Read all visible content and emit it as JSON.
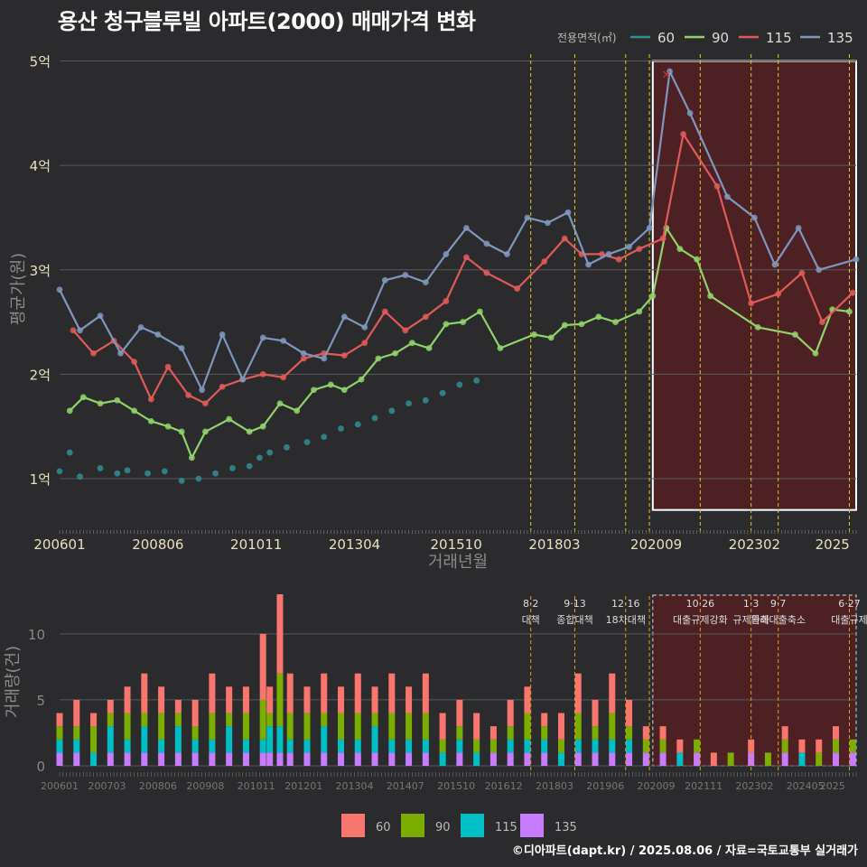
{
  "title": "용산 청구블루빌 아파트(2000) 매매가격 변화",
  "credit": "©디아파트(dapt.kr) / 2025.08.06 / 자료=국토교통부 실거래가",
  "colors": {
    "s60_price": "#2f8f95",
    "s90_price": "#8fd46a",
    "s115_price": "#e05a5a",
    "s135_price": "#7f96bd",
    "s60_vol": "#f8766d",
    "s90_vol": "#7cae00",
    "s115_vol": "#00bfc4",
    "s135_vol": "#c77cff",
    "policy_line": "#e8c81c",
    "highlight_fill": "#5a1f22",
    "grid": "#5a5a5c",
    "axis_text": "#e8e0c0"
  },
  "chart_data": [
    {
      "type": "line",
      "title": "용산 청구블루빌 아파트(2000) 매매가격 변화",
      "xlabel": "거래년월",
      "ylabel": "평균가(원)",
      "x_range": [
        200601,
        202508
      ],
      "ylim": [
        0.55,
        5.1
      ],
      "y_ticks": [
        1,
        2,
        3,
        4,
        5
      ],
      "y_tick_labels": [
        "1억",
        "2억",
        "3억",
        "4억",
        "5억"
      ],
      "x_ticks": [
        "200601",
        "200806",
        "201011",
        "201304",
        "201510",
        "201803",
        "202009",
        "202302",
        "2025"
      ],
      "legend_title": "전용면적(㎡)",
      "legend_position": "top-right",
      "highlight_period": {
        "from": "2020-08",
        "to": "2025-08",
        "y_from": 0.7,
        "y_to": 5.0
      },
      "marker": {
        "label": "×",
        "x": "2020-12",
        "y": 4.88
      },
      "series": [
        {
          "name": "60",
          "points": [
            [
              "2006-01",
              1.07
            ],
            [
              "2006-04",
              1.25
            ],
            [
              "2006-07",
              1.02
            ],
            [
              "2007-01",
              1.1
            ],
            [
              "2007-06",
              1.05
            ],
            [
              "2007-09",
              1.08
            ],
            [
              "2008-03",
              1.05
            ],
            [
              "2008-08",
              1.07
            ],
            [
              "2009-01",
              0.98
            ],
            [
              "2009-06",
              1.0
            ],
            [
              "2009-11",
              1.05
            ],
            [
              "2010-04",
              1.1
            ],
            [
              "2010-09",
              1.12
            ],
            [
              "2010-12",
              1.2
            ],
            [
              "2011-03",
              1.25
            ],
            [
              "2011-08",
              1.3
            ],
            [
              "2012-02",
              1.35
            ],
            [
              "2012-07",
              1.4
            ],
            [
              "2012-12",
              1.48
            ],
            [
              "2013-05",
              1.52
            ],
            [
              "2013-10",
              1.58
            ],
            [
              "2014-03",
              1.65
            ],
            [
              "2014-08",
              1.72
            ],
            [
              "2015-01",
              1.75
            ],
            [
              "2015-06",
              1.82
            ],
            [
              "2015-11",
              1.9
            ],
            [
              "2016-04",
              1.94
            ]
          ]
        },
        {
          "name": "90",
          "points": [
            [
              "2006-04",
              1.65
            ],
            [
              "2006-08",
              1.78
            ],
            [
              "2007-01",
              1.72
            ],
            [
              "2007-06",
              1.75
            ],
            [
              "2007-11",
              1.65
            ],
            [
              "2008-04",
              1.55
            ],
            [
              "2008-09",
              1.5
            ],
            [
              "2009-01",
              1.45
            ],
            [
              "2009-04",
              1.2
            ],
            [
              "2009-08",
              1.45
            ],
            [
              "2010-03",
              1.57
            ],
            [
              "2010-09",
              1.45
            ],
            [
              "2011-01",
              1.5
            ],
            [
              "2011-06",
              1.72
            ],
            [
              "2011-11",
              1.65
            ],
            [
              "2012-04",
              1.85
            ],
            [
              "2012-09",
              1.9
            ],
            [
              "2013-01",
              1.85
            ],
            [
              "2013-06",
              1.95
            ],
            [
              "2013-11",
              2.15
            ],
            [
              "2014-04",
              2.2
            ],
            [
              "2014-09",
              2.3
            ],
            [
              "2015-02",
              2.25
            ],
            [
              "2015-07",
              2.48
            ],
            [
              "2015-12",
              2.5
            ],
            [
              "2016-05",
              2.6
            ],
            [
              "2016-11",
              2.25
            ],
            [
              "2017-09",
              2.38
            ],
            [
              "2018-02",
              2.35
            ],
            [
              "2018-06",
              2.47
            ],
            [
              "2018-11",
              2.48
            ],
            [
              "2019-04",
              2.55
            ],
            [
              "2019-09",
              2.5
            ],
            [
              "2020-04",
              2.6
            ],
            [
              "2020-08",
              2.75
            ],
            [
              "2020-12",
              3.4
            ],
            [
              "2021-04",
              3.2
            ],
            [
              "2021-09",
              3.1
            ],
            [
              "2022-01",
              2.75
            ],
            [
              "2023-03",
              2.45
            ],
            [
              "2024-02",
              2.38
            ],
            [
              "2024-08",
              2.2
            ],
            [
              "2025-01",
              2.62
            ],
            [
              "2025-06",
              2.6
            ]
          ]
        },
        {
          "name": "115",
          "points": [
            [
              "2006-05",
              2.42
            ],
            [
              "2006-11",
              2.2
            ],
            [
              "2007-05",
              2.32
            ],
            [
              "2007-11",
              2.12
            ],
            [
              "2008-04",
              1.76
            ],
            [
              "2008-09",
              2.07
            ],
            [
              "2009-03",
              1.8
            ],
            [
              "2009-08",
              1.72
            ],
            [
              "2010-01",
              1.88
            ],
            [
              "2010-07",
              1.95
            ],
            [
              "2011-01",
              2.0
            ],
            [
              "2011-07",
              1.97
            ],
            [
              "2012-01",
              2.15
            ],
            [
              "2012-07",
              2.2
            ],
            [
              "2013-01",
              2.18
            ],
            [
              "2013-07",
              2.3
            ],
            [
              "2014-01",
              2.6
            ],
            [
              "2014-07",
              2.42
            ],
            [
              "2015-01",
              2.55
            ],
            [
              "2015-07",
              2.7
            ],
            [
              "2016-01",
              3.12
            ],
            [
              "2016-07",
              2.97
            ],
            [
              "2017-04",
              2.82
            ],
            [
              "2017-12",
              3.08
            ],
            [
              "2018-06",
              3.3
            ],
            [
              "2018-11",
              3.15
            ],
            [
              "2019-05",
              3.15
            ],
            [
              "2019-10",
              3.1
            ],
            [
              "2020-04",
              3.2
            ],
            [
              "2020-11",
              3.3
            ],
            [
              "2021-05",
              4.3
            ],
            [
              "2022-03",
              3.8
            ],
            [
              "2023-01",
              2.68
            ],
            [
              "2023-09",
              2.77
            ],
            [
              "2024-04",
              2.97
            ],
            [
              "2024-10",
              2.5
            ],
            [
              "2025-07",
              2.78
            ]
          ]
        },
        {
          "name": "135",
          "points": [
            [
              "2006-01",
              2.81
            ],
            [
              "2006-07",
              2.42
            ],
            [
              "2007-01",
              2.56
            ],
            [
              "2007-07",
              2.2
            ],
            [
              "2008-01",
              2.45
            ],
            [
              "2008-06",
              2.38
            ],
            [
              "2009-01",
              2.25
            ],
            [
              "2009-07",
              1.85
            ],
            [
              "2010-01",
              2.38
            ],
            [
              "2010-07",
              1.95
            ],
            [
              "2011-01",
              2.35
            ],
            [
              "2011-07",
              2.32
            ],
            [
              "2012-01",
              2.2
            ],
            [
              "2012-07",
              2.15
            ],
            [
              "2013-01",
              2.55
            ],
            [
              "2013-07",
              2.45
            ],
            [
              "2014-01",
              2.9
            ],
            [
              "2014-07",
              2.95
            ],
            [
              "2015-01",
              2.88
            ],
            [
              "2015-07",
              3.15
            ],
            [
              "2016-01",
              3.4
            ],
            [
              "2016-07",
              3.25
            ],
            [
              "2017-01",
              3.15
            ],
            [
              "2017-07",
              3.5
            ],
            [
              "2018-01",
              3.45
            ],
            [
              "2018-07",
              3.55
            ],
            [
              "2019-01",
              3.05
            ],
            [
              "2019-07",
              3.15
            ],
            [
              "2020-01",
              3.22
            ],
            [
              "2020-07",
              3.4
            ],
            [
              "2021-01",
              4.9
            ],
            [
              "2021-07",
              4.5
            ],
            [
              "2022-06",
              3.7
            ],
            [
              "2023-02",
              3.5
            ],
            [
              "2023-08",
              3.05
            ],
            [
              "2024-03",
              3.4
            ],
            [
              "2024-09",
              3.0
            ],
            [
              "2025-08",
              3.1
            ]
          ]
        }
      ]
    },
    {
      "type": "bar",
      "stacked": true,
      "ylabel": "거래량(건)",
      "ylim": [
        0,
        13
      ],
      "y_ticks": [
        0,
        5,
        10
      ],
      "x_ticks": [
        "200601",
        "200703",
        "200806",
        "200908",
        "201011",
        "201201",
        "201304",
        "201407",
        "201510",
        "201612",
        "201803",
        "201906",
        "202009",
        "202111",
        "202302",
        "202405",
        "2025"
      ],
      "legend_position": "bottom",
      "series_names": [
        "60",
        "90",
        "115",
        "135"
      ],
      "highlight_period": {
        "from": "2020-08",
        "to": "2025-08"
      },
      "annotations": [
        {
          "date": "2017-08",
          "label": "8·2 대책"
        },
        {
          "date": "2018-09",
          "label": "9·13 종합대책"
        },
        {
          "date": "2019-12",
          "label": "12·16 18차대책"
        },
        {
          "date": "2020-07",
          "label": ""
        },
        {
          "date": "2021-10",
          "label": "10·26 대출규제강화"
        },
        {
          "date": "2023-01",
          "label": "1·3 규제완화"
        },
        {
          "date": "2023-09",
          "label": "9·7 특례대출축소"
        },
        {
          "date": "2025-06",
          "label": "6·27 대출규제"
        }
      ]
    }
  ],
  "volume": {
    "months": [
      "2006-01",
      "2006-06",
      "2006-11",
      "2007-04",
      "2007-09",
      "2008-02",
      "2008-07",
      "2008-12",
      "2009-05",
      "2009-10",
      "2010-03",
      "2010-08",
      "2011-01",
      "2011-03",
      "2011-06",
      "2011-09",
      "2012-02",
      "2012-07",
      "2012-12",
      "2013-05",
      "2013-10",
      "2014-03",
      "2014-08",
      "2015-01",
      "2015-06",
      "2015-11",
      "2016-04",
      "2016-09",
      "2017-02",
      "2017-07",
      "2017-12",
      "2018-05",
      "2018-10",
      "2019-03",
      "2019-08",
      "2020-01",
      "2020-06",
      "2020-11",
      "2021-04",
      "2021-09",
      "2022-02",
      "2022-07",
      "2023-01",
      "2023-06",
      "2023-11",
      "2024-04",
      "2024-09",
      "2025-02",
      "2025-07"
    ],
    "s60": [
      1,
      2,
      1,
      1,
      2,
      3,
      2,
      1,
      2,
      3,
      2,
      2,
      5,
      2,
      6,
      3,
      2,
      3,
      2,
      3,
      2,
      3,
      2,
      3,
      2,
      2,
      2,
      1,
      2,
      2,
      1,
      2,
      3,
      2,
      3,
      2,
      1,
      1,
      1,
      0,
      1,
      0,
      1,
      0,
      1,
      1,
      1,
      1,
      0
    ],
    "s90": [
      1,
      1,
      2,
      1,
      2,
      1,
      2,
      1,
      1,
      2,
      1,
      2,
      3,
      1,
      4,
      2,
      2,
      1,
      2,
      2,
      1,
      2,
      2,
      2,
      1,
      1,
      1,
      1,
      1,
      2,
      1,
      1,
      2,
      1,
      2,
      1,
      1,
      1,
      0,
      1,
      0,
      1,
      0,
      1,
      1,
      0,
      1,
      1,
      1
    ],
    "s115": [
      1,
      1,
      1,
      2,
      1,
      2,
      1,
      2,
      1,
      1,
      2,
      1,
      1,
      2,
      2,
      1,
      1,
      2,
      1,
      1,
      2,
      1,
      1,
      1,
      1,
      1,
      1,
      0,
      1,
      1,
      1,
      1,
      1,
      1,
      1,
      1,
      0,
      0,
      1,
      0,
      0,
      0,
      0,
      0,
      0,
      1,
      0,
      0,
      0
    ],
    "s135": [
      1,
      1,
      0,
      1,
      1,
      1,
      1,
      1,
      1,
      1,
      1,
      1,
      1,
      1,
      1,
      1,
      1,
      1,
      1,
      1,
      1,
      1,
      1,
      1,
      0,
      1,
      0,
      1,
      1,
      1,
      1,
      0,
      1,
      1,
      1,
      1,
      1,
      1,
      0,
      1,
      0,
      0,
      1,
      0,
      1,
      0,
      0,
      1,
      1
    ]
  }
}
